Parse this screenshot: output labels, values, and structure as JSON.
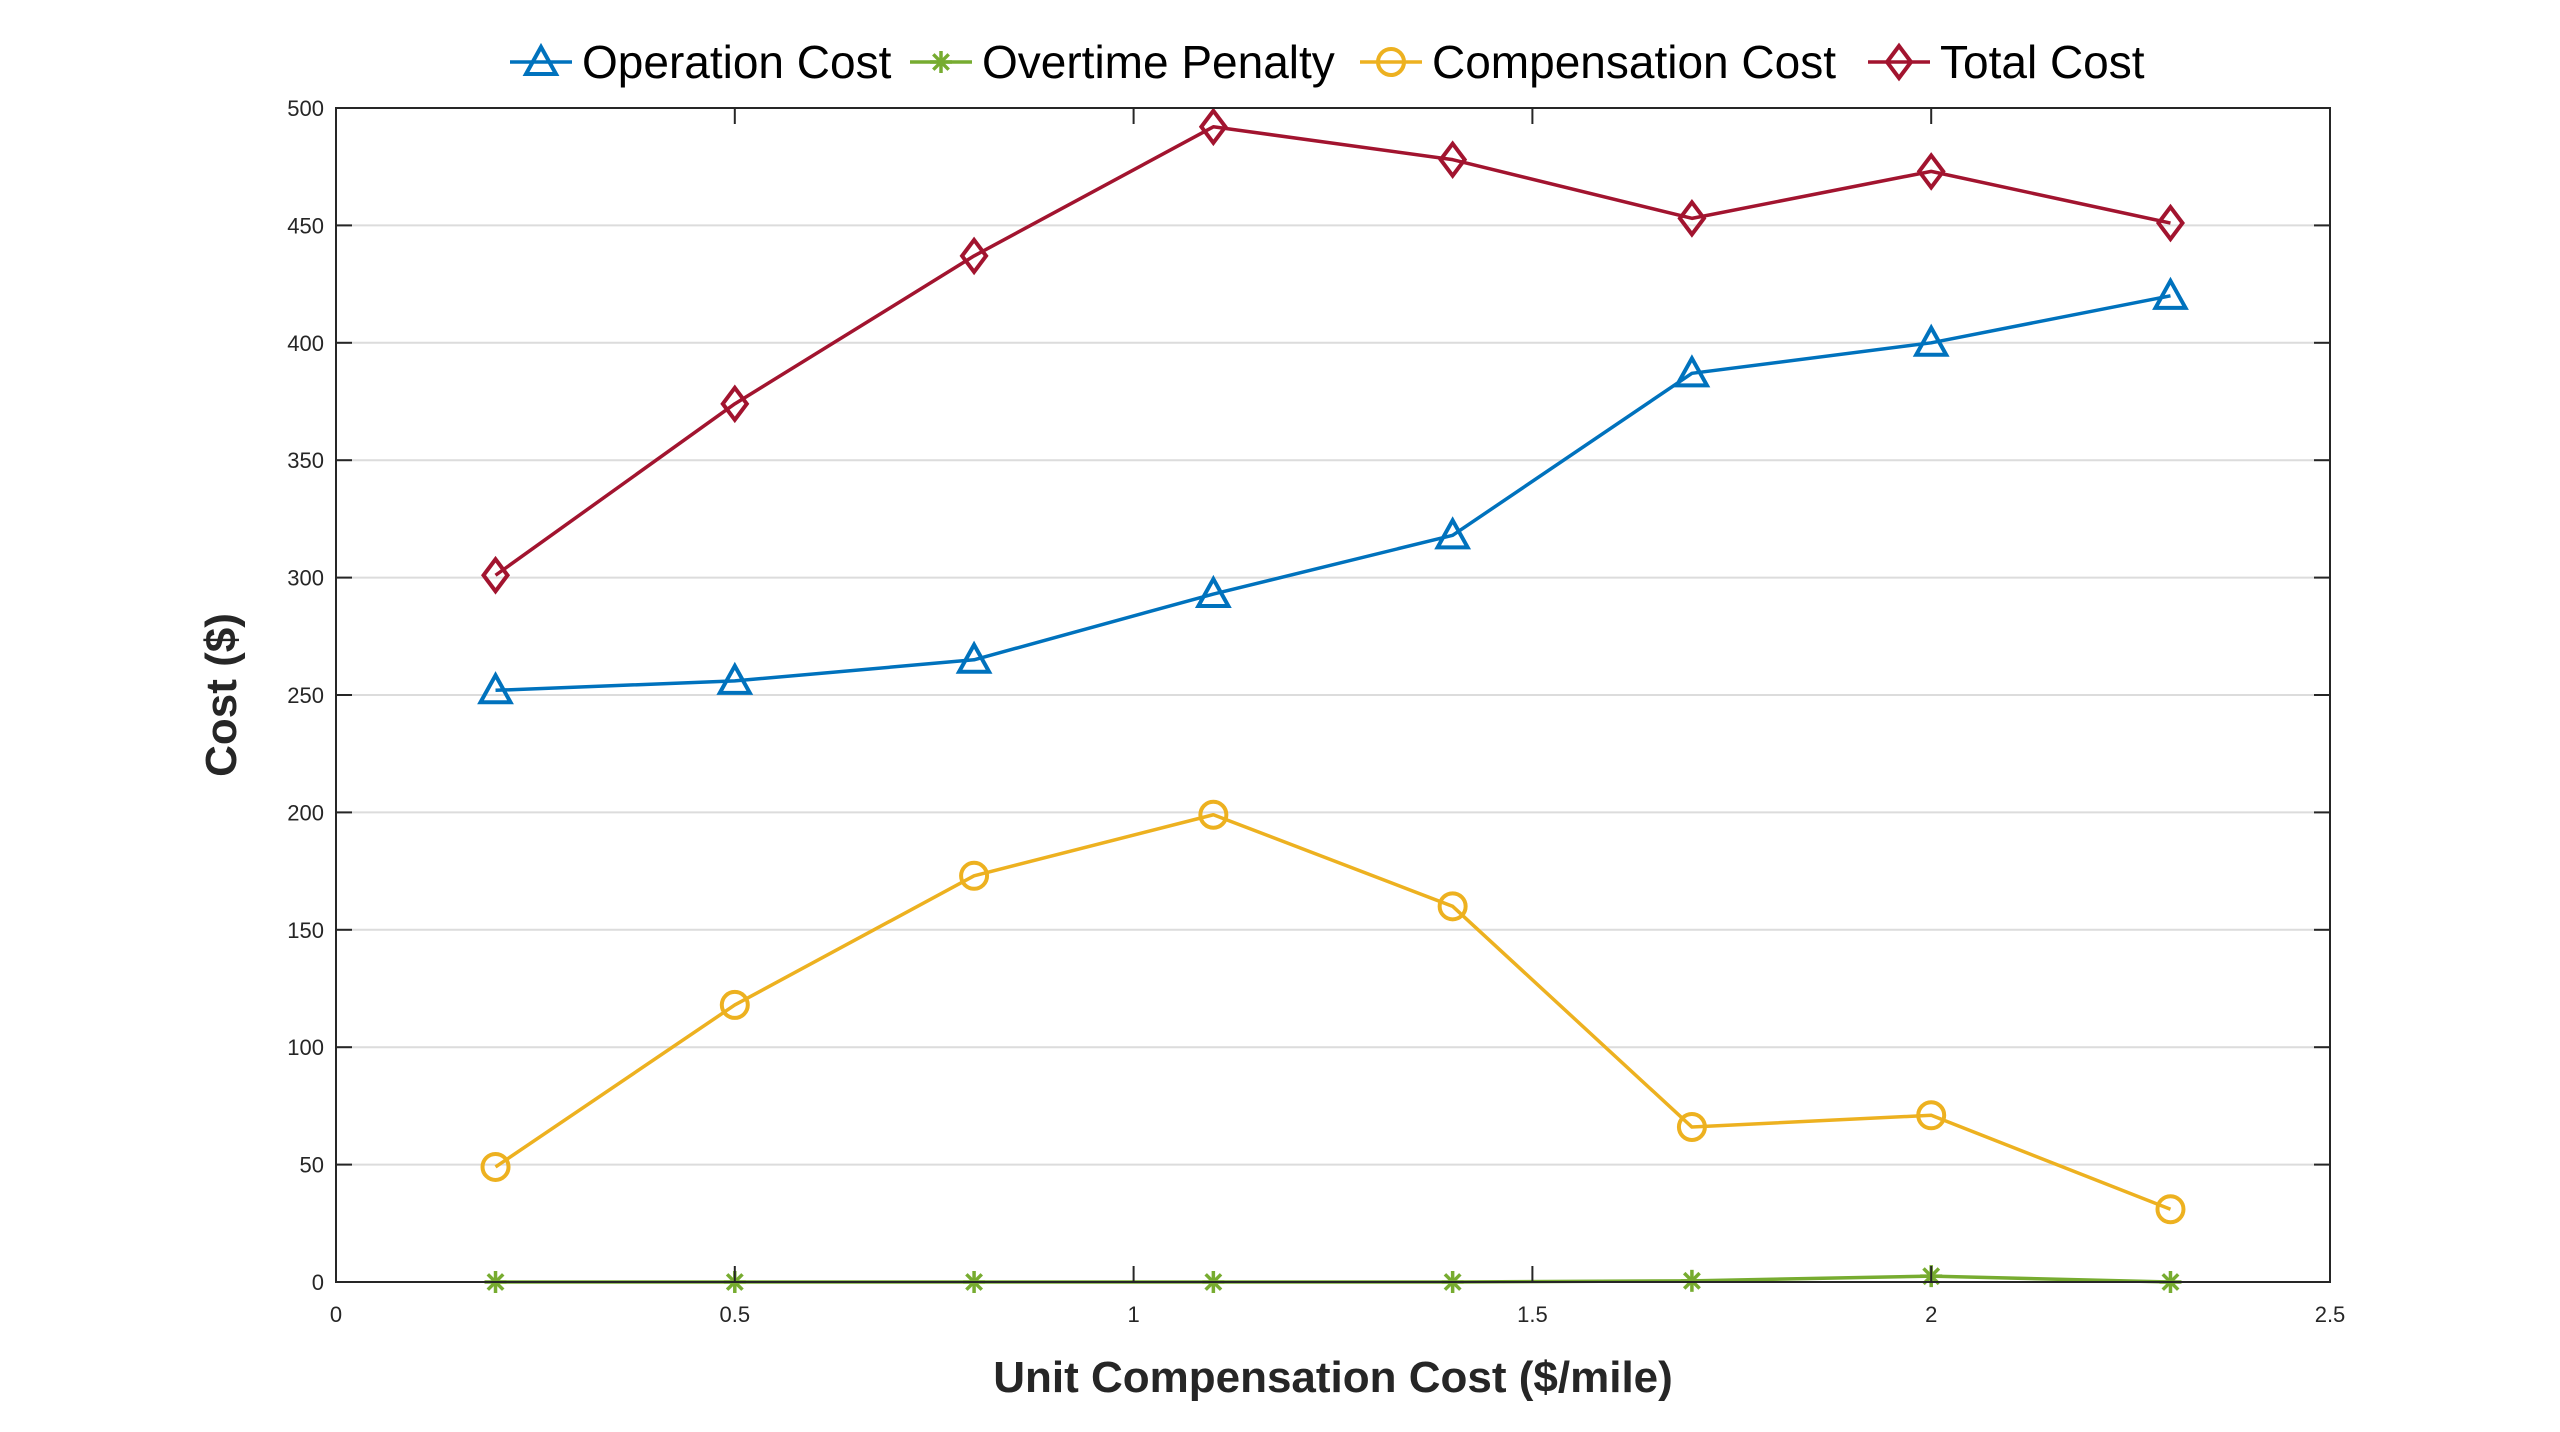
{
  "chart_data": {
    "type": "line",
    "xlabel": "Unit Compensation Cost ($/mile)",
    "ylabel": "Cost ($)",
    "xlim": [
      0,
      2.5
    ],
    "ylim": [
      0,
      500
    ],
    "xticks": [
      0,
      0.5,
      1,
      1.5,
      2,
      2.5
    ],
    "xtick_labels": [
      "0",
      "0.5",
      "1",
      "1.5",
      "2",
      "2.5"
    ],
    "yticks": [
      0,
      50,
      100,
      150,
      200,
      250,
      300,
      350,
      400,
      450,
      500
    ],
    "ytick_labels": [
      "0",
      "50",
      "100",
      "150",
      "200",
      "250",
      "300",
      "350",
      "400",
      "450",
      "500"
    ],
    "grid": "horizontal",
    "legend_position": "top",
    "x": [
      0.2,
      0.5,
      0.8,
      1.1,
      1.4,
      1.7,
      2.0,
      2.3
    ],
    "series": [
      {
        "name": "Operation Cost",
        "marker": "triangle",
        "color": "#0072BD",
        "values": [
          252,
          256,
          265,
          293,
          318,
          387,
          400,
          420
        ]
      },
      {
        "name": "Overtime Penalty",
        "marker": "asterisk",
        "color": "#77AC30",
        "values": [
          0,
          0,
          0,
          0,
          0,
          0.5,
          2.5,
          0
        ]
      },
      {
        "name": "Compensation Cost",
        "marker": "circle",
        "color": "#EDB120",
        "values": [
          49,
          118,
          173,
          199,
          160,
          66,
          71,
          31
        ]
      },
      {
        "name": "Total Cost",
        "marker": "diamond",
        "color": "#A2142F",
        "values": [
          301,
          374,
          437,
          492,
          478,
          453,
          473,
          451
        ]
      }
    ]
  }
}
